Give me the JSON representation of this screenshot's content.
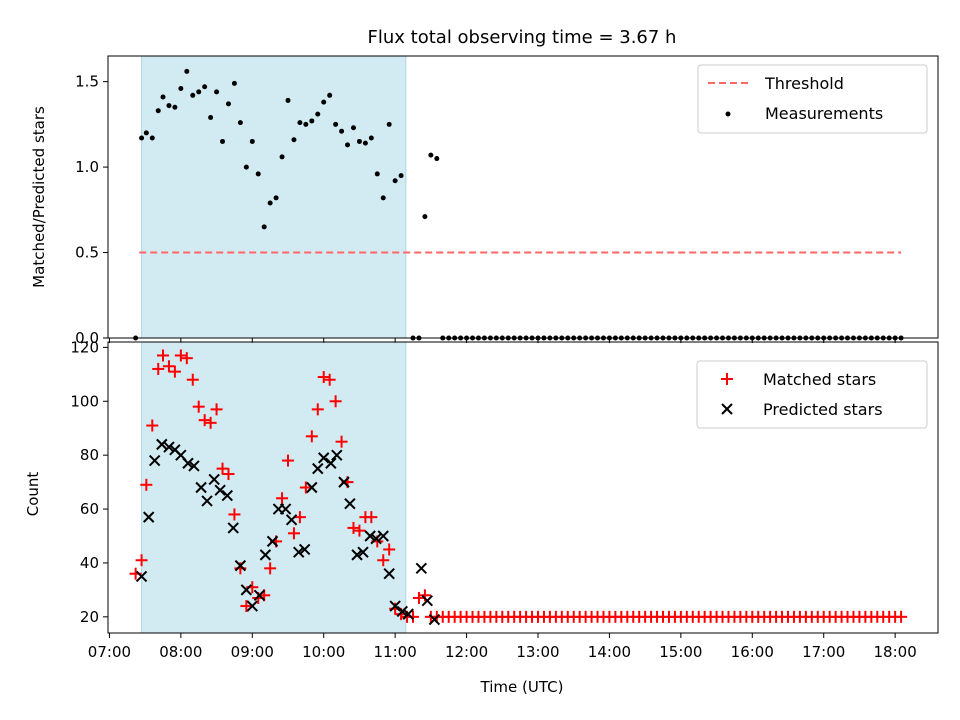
{
  "chart_data": {
    "title": "Flux total observing time = 3.67 h",
    "xlabel": "Time (UTC)",
    "x_ticks": [
      "07:00",
      "08:00",
      "09:00",
      "10:00",
      "11:00",
      "12:00",
      "13:00",
      "14:00",
      "15:00",
      "16:00",
      "17:00",
      "18:00"
    ],
    "xlim_hours": [
      6.98,
      18.6
    ],
    "shaded_interval": [
      "07:27",
      "11:09"
    ],
    "shade_color": "#add8e6",
    "panels": [
      {
        "type": "scatter",
        "ylabel": "Matched/Predicted stars",
        "ylim": [
          0,
          1.65
        ],
        "y_ticks": [
          "0.0",
          "0.5",
          "1.0",
          "1.5"
        ],
        "y_tick_values": [
          0,
          0.5,
          1.0,
          1.5
        ],
        "legend_position": "top-right",
        "threshold": {
          "name": "Threshold",
          "value": 0.5,
          "x_start": "07:25",
          "x_end": "18:05",
          "color": "#ff6666"
        },
        "series": [
          {
            "name": "Measurements",
            "color": "#000000",
            "marker": "dot",
            "points": [
              [
                "07:22",
                0.0
              ],
              [
                "07:27",
                1.17
              ],
              [
                "07:31",
                1.2
              ],
              [
                "07:36",
                1.17
              ],
              [
                "07:41",
                1.33
              ],
              [
                "07:45",
                1.41
              ],
              [
                "07:50",
                1.36
              ],
              [
                "07:55",
                1.35
              ],
              [
                "08:00",
                1.46
              ],
              [
                "08:05",
                1.56
              ],
              [
                "08:10",
                1.42
              ],
              [
                "08:15",
                1.44
              ],
              [
                "08:20",
                1.47
              ],
              [
                "08:25",
                1.29
              ],
              [
                "08:30",
                1.44
              ],
              [
                "08:35",
                1.15
              ],
              [
                "08:40",
                1.37
              ],
              [
                "08:45",
                1.49
              ],
              [
                "08:50",
                1.26
              ],
              [
                "08:55",
                1.0
              ],
              [
                "09:00",
                1.15
              ],
              [
                "09:05",
                0.96
              ],
              [
                "09:10",
                0.65
              ],
              [
                "09:15",
                0.79
              ],
              [
                "09:20",
                0.82
              ],
              [
                "09:25",
                1.06
              ],
              [
                "09:30",
                1.39
              ],
              [
                "09:35",
                1.16
              ],
              [
                "09:40",
                1.26
              ],
              [
                "09:45",
                1.25
              ],
              [
                "09:50",
                1.27
              ],
              [
                "09:55",
                1.31
              ],
              [
                "10:00",
                1.38
              ],
              [
                "10:05",
                1.42
              ],
              [
                "10:10",
                1.25
              ],
              [
                "10:15",
                1.21
              ],
              [
                "10:20",
                1.13
              ],
              [
                "10:25",
                1.23
              ],
              [
                "10:30",
                1.15
              ],
              [
                "10:35",
                1.14
              ],
              [
                "10:40",
                1.17
              ],
              [
                "10:45",
                0.96
              ],
              [
                "10:50",
                0.82
              ],
              [
                "10:55",
                1.25
              ],
              [
                "11:00",
                0.92
              ],
              [
                "11:05",
                0.95
              ],
              [
                "11:15",
                0.0
              ],
              [
                "11:20",
                0.0
              ],
              [
                "11:25",
                0.71
              ],
              [
                "11:30",
                1.07
              ],
              [
                "11:35",
                1.05
              ]
            ],
            "zero_run": {
              "value": 0.0,
              "from": "11:40",
              "to": "18:05",
              "step_minutes": 5
            }
          }
        ]
      },
      {
        "type": "scatter",
        "ylabel": "Count",
        "ylim": [
          14,
          122
        ],
        "y_ticks": [
          "20",
          "40",
          "60",
          "80",
          "100",
          "120"
        ],
        "y_tick_values": [
          20,
          40,
          60,
          80,
          100,
          120
        ],
        "legend_position": "top-right",
        "series": [
          {
            "name": "Matched stars",
            "color": "#ff0000",
            "marker": "plus",
            "points": [
              [
                "07:22",
                36
              ],
              [
                "07:27",
                41
              ],
              [
                "07:31",
                69
              ],
              [
                "07:36",
                91
              ],
              [
                "07:41",
                112
              ],
              [
                "07:45",
                117
              ],
              [
                "07:50",
                113
              ],
              [
                "07:55",
                111
              ],
              [
                "08:00",
                117
              ],
              [
                "08:05",
                116
              ],
              [
                "08:10",
                108
              ],
              [
                "08:15",
                98
              ],
              [
                "08:20",
                93
              ],
              [
                "08:25",
                92
              ],
              [
                "08:30",
                97
              ],
              [
                "08:35",
                75
              ],
              [
                "08:40",
                73
              ],
              [
                "08:45",
                58
              ],
              [
                "08:50",
                38
              ],
              [
                "08:55",
                24
              ],
              [
                "09:00",
                31
              ],
              [
                "09:05",
                27
              ],
              [
                "09:10",
                28
              ],
              [
                "09:15",
                38
              ],
              [
                "09:20",
                48
              ],
              [
                "09:25",
                64
              ],
              [
                "09:30",
                78
              ],
              [
                "09:35",
                51
              ],
              [
                "09:40",
                57
              ],
              [
                "09:45",
                68
              ],
              [
                "09:50",
                87
              ],
              [
                "09:55",
                97
              ],
              [
                "10:00",
                109
              ],
              [
                "10:05",
                108
              ],
              [
                "10:10",
                100
              ],
              [
                "10:15",
                85
              ],
              [
                "10:20",
                70
              ],
              [
                "10:25",
                53
              ],
              [
                "10:30",
                52
              ],
              [
                "10:35",
                57
              ],
              [
                "10:40",
                57
              ],
              [
                "10:45",
                48
              ],
              [
                "10:50",
                41
              ],
              [
                "10:55",
                45
              ],
              [
                "11:00",
                23
              ],
              [
                "11:05",
                21
              ],
              [
                "11:10",
                20
              ],
              [
                "11:15",
                20
              ],
              [
                "11:20",
                27
              ],
              [
                "11:25",
                28
              ],
              [
                "11:30",
                20
              ]
            ],
            "constant_run": {
              "value": 20,
              "from": "11:35",
              "to": "18:05",
              "step_minutes": 5
            }
          },
          {
            "name": "Predicted stars",
            "color": "#000000",
            "marker": "x",
            "points": [
              [
                "07:27",
                35
              ],
              [
                "07:33",
                57
              ],
              [
                "07:38",
                78
              ],
              [
                "07:44",
                84
              ],
              [
                "07:50",
                83
              ],
              [
                "07:55",
                82
              ],
              [
                "08:00",
                80
              ],
              [
                "08:06",
                77
              ],
              [
                "08:11",
                76
              ],
              [
                "08:17",
                68
              ],
              [
                "08:22",
                63
              ],
              [
                "08:28",
                71
              ],
              [
                "08:33",
                67
              ],
              [
                "08:39",
                65
              ],
              [
                "08:44",
                53
              ],
              [
                "08:50",
                39
              ],
              [
                "08:55",
                30
              ],
              [
                "09:00",
                24
              ],
              [
                "09:06",
                28
              ],
              [
                "09:11",
                43
              ],
              [
                "09:17",
                48
              ],
              [
                "09:22",
                60
              ],
              [
                "09:28",
                60
              ],
              [
                "09:33",
                56
              ],
              [
                "09:39",
                44
              ],
              [
                "09:44",
                45
              ],
              [
                "09:50",
                68
              ],
              [
                "09:55",
                75
              ],
              [
                "10:00",
                79
              ],
              [
                "10:06",
                77
              ],
              [
                "10:11",
                80
              ],
              [
                "10:17",
                70
              ],
              [
                "10:22",
                62
              ],
              [
                "10:28",
                43
              ],
              [
                "10:33",
                44
              ],
              [
                "10:39",
                50
              ],
              [
                "10:44",
                49
              ],
              [
                "10:50",
                50
              ],
              [
                "10:55",
                36
              ],
              [
                "11:00",
                24
              ],
              [
                "11:06",
                22
              ],
              [
                "11:11",
                21
              ],
              [
                "11:22",
                38
              ],
              [
                "11:27",
                26
              ],
              [
                "11:33",
                19
              ]
            ]
          }
        ]
      }
    ]
  }
}
